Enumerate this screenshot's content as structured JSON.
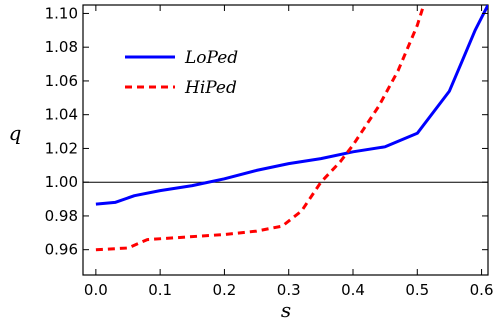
{
  "chart_data": {
    "type": "line",
    "title": "",
    "xlabel": "s",
    "ylabel": "q",
    "xlim": [
      -0.02,
      0.61
    ],
    "ylim": [
      0.945,
      1.105
    ],
    "xticks": [
      0.0,
      0.1,
      0.2,
      0.3,
      0.4,
      0.5,
      0.6
    ],
    "xtick_labels": [
      "0.0",
      "0.1",
      "0.2",
      "0.3",
      "0.4",
      "0.5",
      "0.6"
    ],
    "yticks": [
      0.96,
      0.98,
      1.0,
      1.02,
      1.04,
      1.06,
      1.08,
      1.1
    ],
    "ytick_labels": [
      "0.96",
      "0.98",
      "1.00",
      "1.02",
      "1.04",
      "1.06",
      "1.08",
      "1.10"
    ],
    "reference_line_y": 1.0,
    "legend_position": "upper-left",
    "grid": false,
    "series": [
      {
        "name": "LoPed",
        "color": "#0000ff",
        "style": "solid",
        "points": [
          [
            0.0,
            0.987
          ],
          [
            0.03,
            0.988
          ],
          [
            0.06,
            0.992
          ],
          [
            0.1,
            0.995
          ],
          [
            0.15,
            0.998
          ],
          [
            0.2,
            1.002
          ],
          [
            0.25,
            1.007
          ],
          [
            0.3,
            1.011
          ],
          [
            0.35,
            1.014
          ],
          [
            0.4,
            1.018
          ],
          [
            0.45,
            1.021
          ],
          [
            0.5,
            1.029
          ],
          [
            0.55,
            1.054
          ],
          [
            0.57,
            1.072
          ],
          [
            0.59,
            1.09
          ],
          [
            0.61,
            1.105
          ]
        ]
      },
      {
        "name": "HiPed",
        "color": "#ff0000",
        "style": "dashed",
        "points": [
          [
            0.0,
            0.96
          ],
          [
            0.05,
            0.961
          ],
          [
            0.08,
            0.966
          ],
          [
            0.12,
            0.967
          ],
          [
            0.2,
            0.969
          ],
          [
            0.25,
            0.971
          ],
          [
            0.29,
            0.974
          ],
          [
            0.32,
            0.983
          ],
          [
            0.35,
            1.0
          ],
          [
            0.38,
            1.012
          ],
          [
            0.4,
            1.022
          ],
          [
            0.44,
            1.045
          ],
          [
            0.47,
            1.066
          ],
          [
            0.5,
            1.093
          ],
          [
            0.51,
            1.105
          ]
        ]
      }
    ]
  }
}
